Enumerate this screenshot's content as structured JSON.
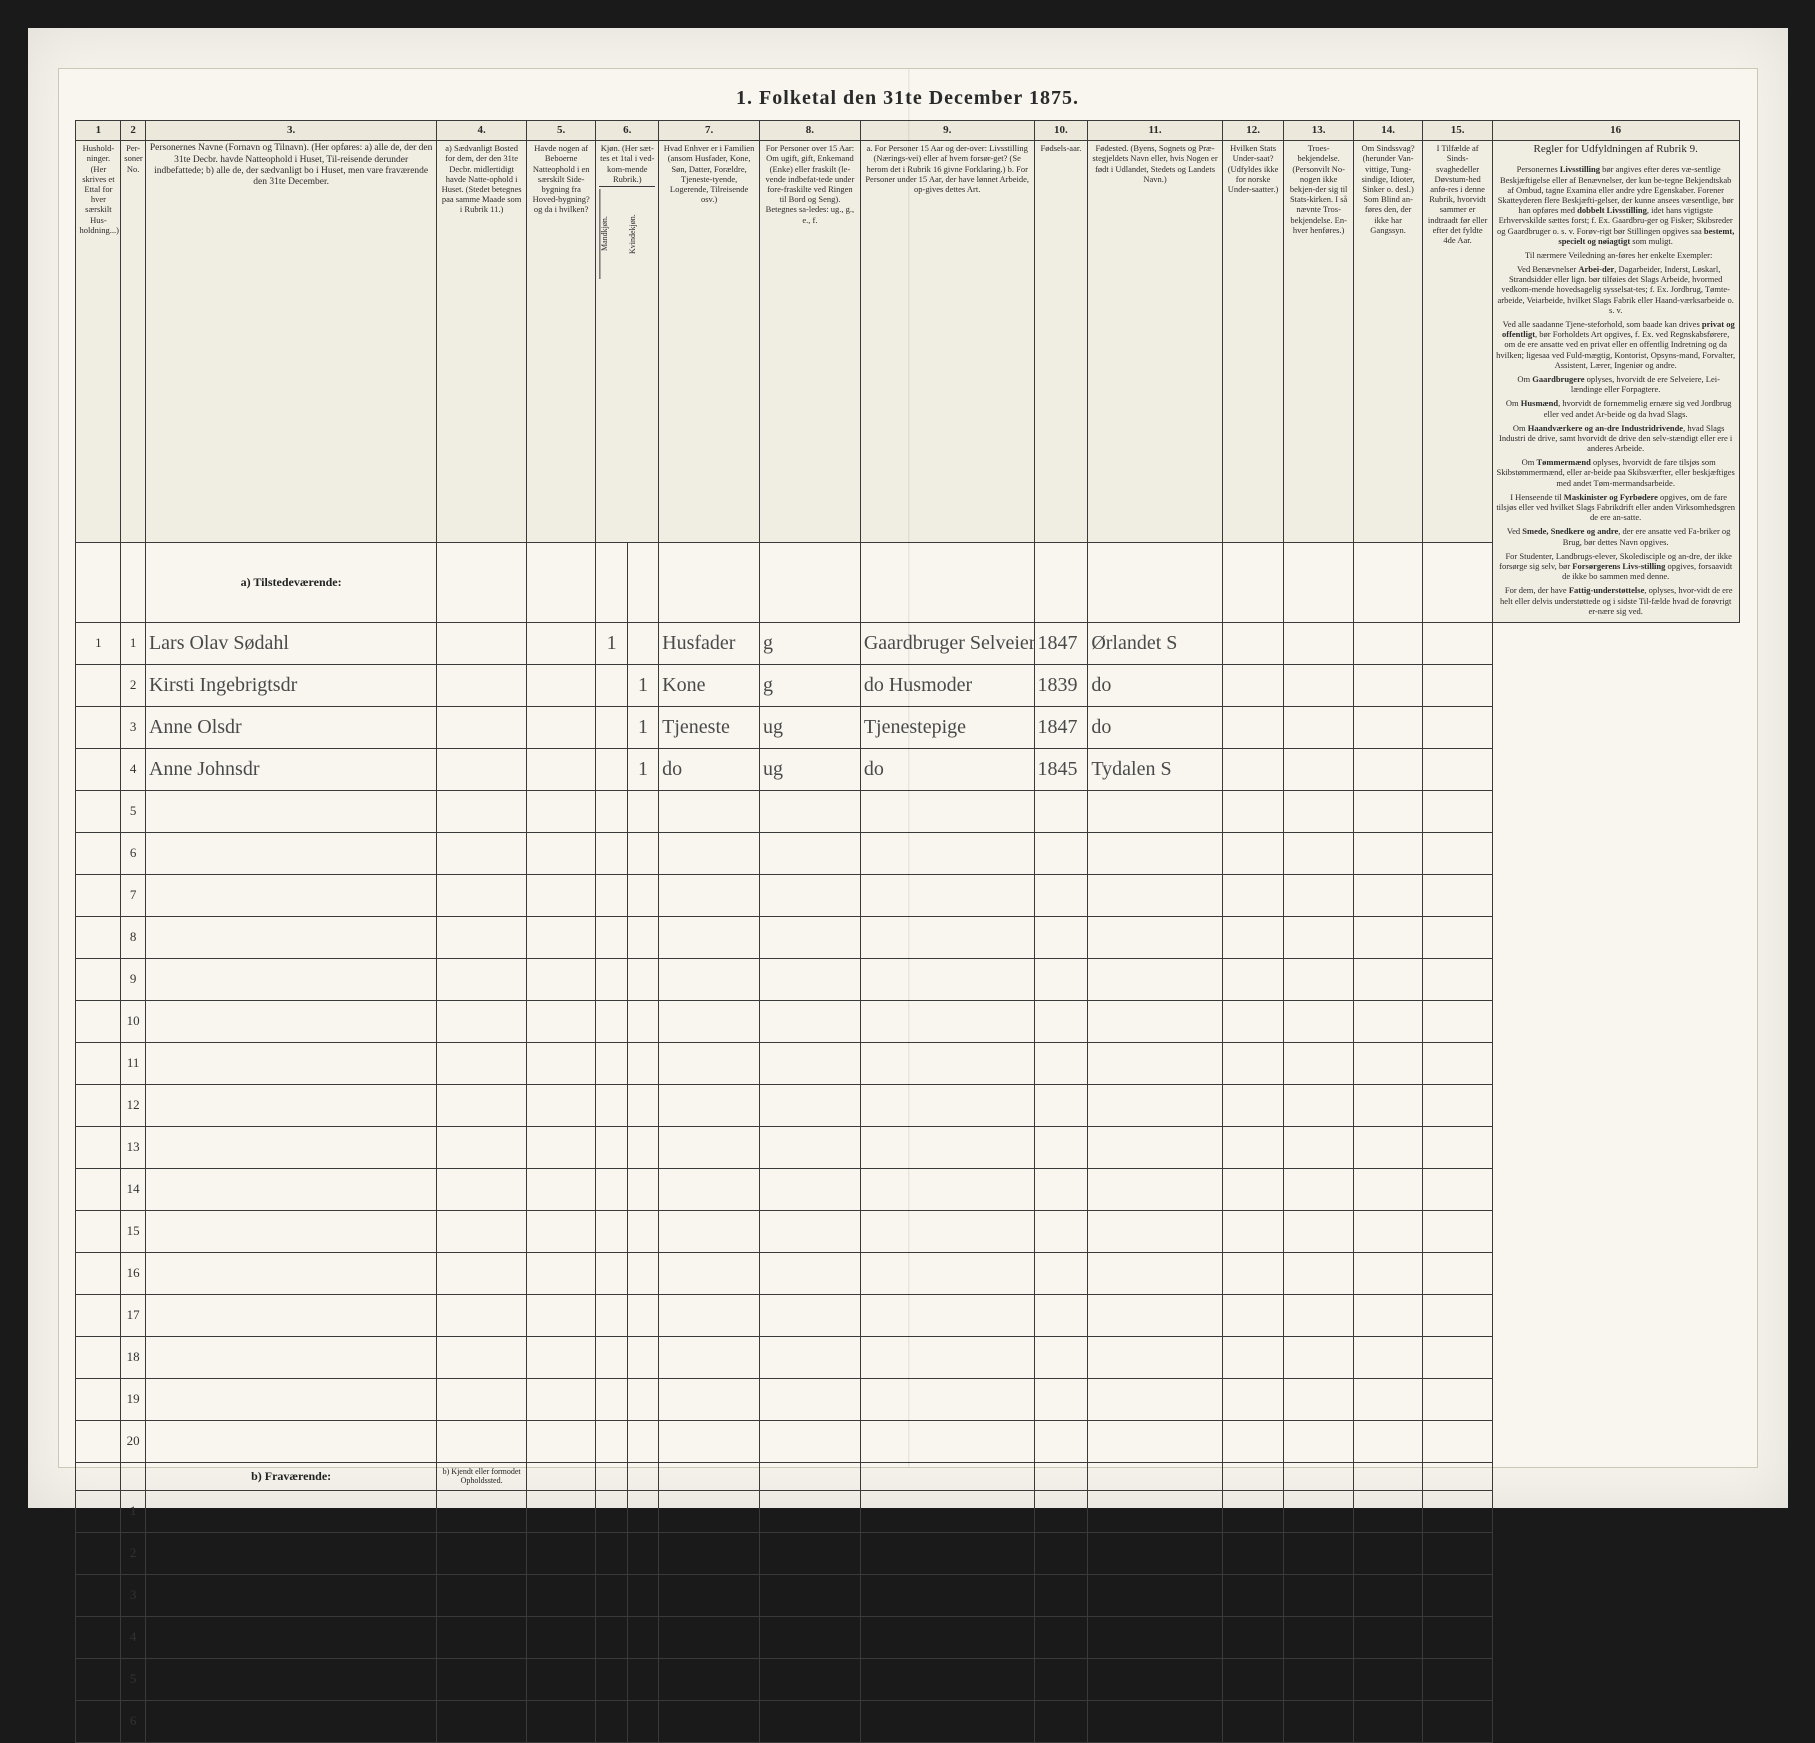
{
  "title": "1.  Folketal den 31te December 1875.",
  "colnums": [
    "1",
    "2",
    "3.",
    "4.",
    "5.",
    "6.",
    "7.",
    "8.",
    "9.",
    "10.",
    "11.",
    "12.",
    "13.",
    "14.",
    "15.",
    "16"
  ],
  "headers": {
    "c1": "Hushold-ninger. (Her skrives et Ettal for hver særskilt Hus-holdning...)",
    "c2": "Per-soner No.",
    "c3": "Personernes Navne (Fornavn og Tilnavn).\n(Her opføres:\na) alle de, der den 31te Decbr. havde Natteophold i Huset, Til-reisende derunder indbefattede;\nb) alle de, der sædvanligt bo i Huset, men vare fraværende den 31te December.",
    "c4": "a) Sædvanligt Bosted for dem, der den 31te Decbr. midlertidigt havde Natte-ophold i Huset. (Stedet betegnes paa samme Maade som i Rubrik 11.)",
    "c5": "Havde nogen af Beboerne Natteophold i en særskilt Side-bygning fra Hoved-bygning? og da i hvilken?",
    "c6": "Kjøn. (Her sæt-tes et 1tal i ved-kom-mende Rubrik.)",
    "c6a": "Mandkjøn.",
    "c6b": "Kvindekjøn.",
    "c7": "Hvad Enhver er i Familien (ansom Husfader, Kone, Søn, Datter, Forældre, Tjeneste-tyende, Logerende, Tilreisende osv.)",
    "c8": "For Personer over 15 Aar: Om ugift, gift, Enkemand (Enke) eller fraskilt (le-vende indbefat-tede under fore-fraskilte ved Ringen til Bord og Seng). Betegnes sa-ledes: ug., g., e., f.",
    "c9": "a. For Personer 15 Aar og der-over: Livsstilling (Nærings-vei) eller af hvem forsør-get? (Se herom det i Rubrik 16 givne Forklaring.)\nb. For Personer under 15 Aar, der have lønnet Arbeide, op-gives dettes Art.",
    "c10": "Fødsels-aar.",
    "c11": "Fødested.\n(Byens, Sognets og Præ-stegjeldets Navn eller, hvis Nogen er født i Udlandet, Stedets og Landets Navn.)",
    "c12": "Hvilken Stats Under-saat? (Udfyldes ikke for norske Under-saatter.)",
    "c13": "Troes-bekjendelse. (Personvilt No-nogen ikke bekjen-der sig til Stats-kirken. I så nævnte Tros-bekjendelse. En-hver henføres.)",
    "c14": "Om Sindssvag? (herunder Van-vittige, Tung-sindige, Idioter, Sinker o. desl.) Som Blind an-føres den, der ikke har Gangssyn.",
    "c15": "I Tilfælde af Sinds-svaghedeller Døvstum-hed anfø-res i denne Rubrik, hvorvidt sammer er indtraadt før eller efter det fyldte 4de Aar.",
    "c16": "Regler for Udfyldningen\naf\nRubrik 9."
  },
  "section_a": "a) Tilstedeværende:",
  "section_b": "b) Fraværende:",
  "section_b_note": "b) Kjendt eller formodet Opholdssted.",
  "rows": [
    {
      "n": "1",
      "p": "1",
      "name": "Lars Olav Sødahl",
      "kM": "1",
      "kF": "",
      "fam": "Husfader",
      "civ": "g",
      "occ": "Gaardbruger Selveier",
      "yr": "1847",
      "place": "Ørlandet S"
    },
    {
      "n": "",
      "p": "2",
      "name": "Kirsti Ingebrigtsdr",
      "kM": "",
      "kF": "1",
      "fam": "Kone",
      "civ": "g",
      "occ": "do Husmoder",
      "yr": "1839",
      "place": "do"
    },
    {
      "n": "",
      "p": "3",
      "name": "Anne Olsdr",
      "kM": "",
      "kF": "1",
      "fam": "Tjeneste",
      "civ": "ug",
      "occ": "Tjenestepige",
      "yr": "1847",
      "place": "do"
    },
    {
      "n": "",
      "p": "4",
      "name": "Anne Johnsdr",
      "kM": "",
      "kF": "1",
      "fam": "do",
      "civ": "ug",
      "occ": "do",
      "yr": "1845",
      "place": "Tydalen S"
    }
  ],
  "empty_a": [
    "5",
    "6",
    "7",
    "8",
    "9",
    "10",
    "11",
    "12",
    "13",
    "14",
    "15",
    "16",
    "17",
    "18",
    "19",
    "20"
  ],
  "empty_b": [
    "1",
    "2",
    "3",
    "4",
    "5",
    "6"
  ],
  "side_paragraphs": [
    "Personernes <strong>Livsstilling</strong> bør angives efter deres væ-sentlige Beskjæftigelse eller af Benævnelser, der kun be-tegne Bekjendtskab af Ombud, tagne Examina eller andre ydre Egenskaber. Forener Skatteyderen flere Beskjæfti-gelser, der kunne ansees væsentlige, bør han opføres med <strong>dobbelt Livsstilling</strong>, idet hans vigtigste Erhvervskilde sættes forst; f. Ex. Gaardbru-ger og Fisker; Skibsreder og Gaardbruger o. s. v. Forøv-rigt bør Stillingen opgives saa <strong>bestemt, specielt og nøiagtigt</strong> som muligt.",
    "Til nærmere Veiledning an-føres her enkelte Exempler:",
    "Ved Benævnelser <strong>Arbei-der</strong>, Dagarbeider, Inderst, Løskarl, Strandsidder eller lign. bør tilføies det Slags Arbeide, hvormed vedkom-mende hovedsagelig sysselsat-tes; f. Ex. Jordbrug, Tømte-arbeide, Veiarbeide, hvilket Slags Fabrik eller Haand-værksarbeide o. s. v.",
    "Ved alle saadanne Tjene-steforhold, som baade kan drives <strong>privat og offentligt</strong>, bør Forholdets Art opgives, f. Ex. ved Regnskabsførere, om de ere ansatte ved en privat eller en offentlig Indretning og da hvilken; ligesaa ved Fuld-mægtig, Kontorist, Opsyns-mand, Forvalter, Assistent, Lærer, Ingeniør og andre.",
    "Om <strong>Gaardbrugere</strong> oplyses, hvorvidt de ere Selveiere, Lei-lændinge eller Forpagtere.",
    "Om <strong>Husmænd</strong>, hvorvidt de fornemmelig ernære sig ved Jordbrug eller ved andet Ar-beide og da hvad Slags.",
    "Om <strong>Haandværkere og an-dre Industridrivende</strong>, hvad Slags Industri de drive, samt hvorvidt de drive den selv-stændigt eller ere i anderes Arbeide.",
    "Om <strong>Tømmermænd</strong> oplyses, hvorvidt de fare tilsjøs som Skibstømmermænd, eller ar-beide paa Skibsværfter, eller beskjæftiges med andet Tøm-mermandsarbeide.",
    "I Henseende til <strong>Maskinister og Fyrbødere</strong> opgives, om de fare tilsjøs eller ved hvilket Slags Fabrikdrift eller anden Virksomhedsgren de ere an-satte.",
    "Ved <strong>Smede, Snedkere og andre</strong>, der ere ansatte ved Fa-briker og Brug, bør dettes Navn opgives.",
    "For Studenter, Landbrugs-elever, Skoledisciple og an-dre, der ikke forsørge sig selv, bør <strong>Forsørgerens Livs-stilling</strong> opgives, forsaavidt de ikke bo sammen med denne.",
    "For dem, der have <strong>Fattig-understøttelse</strong>, oplyses, hvor-vidt de ere helt eller delvis understøttede og i sidste Til-fælde hvad de forøvrigt er-nære sig ved."
  ]
}
